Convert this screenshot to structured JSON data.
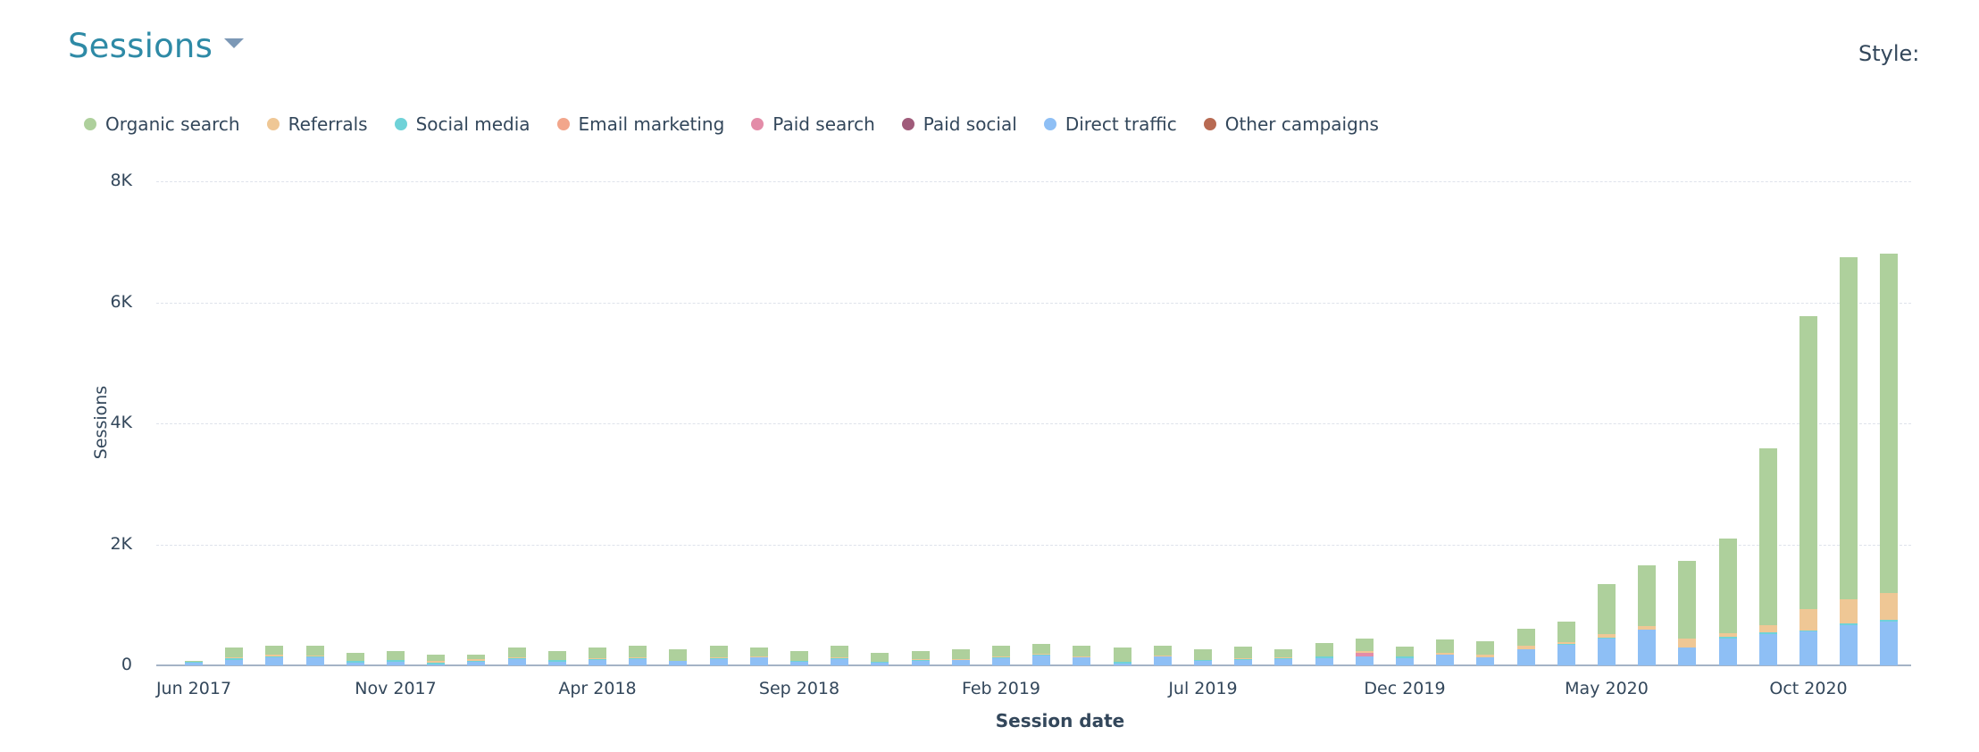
{
  "header": {
    "title": "Sessions",
    "title_color": "#2e8aa6",
    "dropdown_icon": "caret-down-icon",
    "style_label": "Style:"
  },
  "legend": [
    {
      "label": "Organic search",
      "color": "#aed09c"
    },
    {
      "label": "Referrals",
      "color": "#efc795"
    },
    {
      "label": "Social media",
      "color": "#6fd2d8"
    },
    {
      "label": "Email marketing",
      "color": "#f2a68b"
    },
    {
      "label": "Paid search",
      "color": "#e38ca8"
    },
    {
      "label": "Paid social",
      "color": "#a05b7a"
    },
    {
      "label": "Direct traffic",
      "color": "#8ebff5"
    },
    {
      "label": "Other campaigns",
      "color": "#b86a52"
    }
  ],
  "axes": {
    "y_title": "Sessions",
    "x_title": "Session date",
    "y_ticks": [
      "0",
      "2K",
      "4K",
      "6K",
      "8K"
    ],
    "x_ticks": [
      "Jun 2017",
      "Nov 2017",
      "Apr 2018",
      "Sep 2018",
      "Feb 2019",
      "Jul 2019",
      "Dec 2019",
      "May 2020",
      "Oct 2020"
    ]
  },
  "chart_data": {
    "type": "bar",
    "stacked": true,
    "title": "Sessions",
    "xlabel": "Session date",
    "ylabel": "Sessions",
    "ylim": [
      0,
      8000
    ],
    "y_ticks": [
      0,
      2000,
      4000,
      6000,
      8000
    ],
    "grid": true,
    "legend_position": "top",
    "categories": [
      "Jun 2017",
      "Jul 2017",
      "Aug 2017",
      "Sep 2017",
      "Oct 2017",
      "Nov 2017",
      "Dec 2017",
      "Jan 2018",
      "Feb 2018",
      "Mar 2018",
      "Apr 2018",
      "May 2018",
      "Jun 2018",
      "Jul 2018",
      "Aug 2018",
      "Sep 2018",
      "Oct 2018",
      "Nov 2018",
      "Dec 2018",
      "Jan 2019",
      "Feb 2019",
      "Mar 2019",
      "Apr 2019",
      "May 2019",
      "Jun 2019",
      "Jul 2019",
      "Aug 2019",
      "Sep 2019",
      "Oct 2019",
      "Nov 2019",
      "Dec 2019",
      "Jan 2020",
      "Feb 2020",
      "Mar 2020",
      "Apr 2020",
      "May 2020",
      "Jun 2020",
      "Jul 2020",
      "Aug 2020",
      "Sep 2020",
      "Oct 2020",
      "Nov 2020",
      "Dec 2020"
    ],
    "series": [
      {
        "name": "Organic search",
        "values": [
          20,
          150,
          150,
          170,
          130,
          150,
          100,
          80,
          170,
          150,
          180,
          200,
          190,
          200,
          150,
          160,
          200,
          150,
          140,
          160,
          180,
          170,
          180,
          240,
          170,
          180,
          200,
          140,
          220,
          210,
          160,
          220,
          220,
          290,
          340,
          820,
          1000,
          1280,
          1570,
          2920,
          4840,
          5650,
          5600
        ]
      },
      {
        "name": "Referrals",
        "values": [
          5,
          25,
          30,
          10,
          10,
          5,
          30,
          30,
          5,
          5,
          10,
          5,
          5,
          5,
          10,
          5,
          15,
          5,
          5,
          15,
          20,
          5,
          15,
          5,
          5,
          5,
          5,
          15,
          10,
          30,
          10,
          30,
          40,
          50,
          30,
          60,
          60,
          150,
          60,
          120,
          360,
          400,
          450
        ]
      },
      {
        "name": "Social media",
        "values": [
          10,
          20,
          20,
          20,
          30,
          20,
          40,
          10,
          20,
          20,
          20,
          20,
          5,
          20,
          5,
          10,
          10,
          5,
          20,
          5,
          5,
          20,
          5,
          20,
          10,
          5,
          20,
          5,
          20,
          5,
          20,
          5,
          5,
          5,
          5,
          10,
          5,
          5,
          20,
          20,
          20,
          30,
          30
        ]
      },
      {
        "name": "Email marketing",
        "values": [
          0,
          0,
          0,
          0,
          0,
          0,
          0,
          0,
          0,
          0,
          0,
          0,
          0,
          0,
          0,
          0,
          0,
          0,
          0,
          0,
          0,
          0,
          0,
          0,
          0,
          0,
          0,
          0,
          0,
          0,
          0,
          0,
          0,
          0,
          0,
          0,
          0,
          0,
          0,
          0,
          0,
          0,
          0
        ]
      },
      {
        "name": "Paid search",
        "values": [
          0,
          0,
          0,
          0,
          0,
          0,
          0,
          0,
          0,
          0,
          0,
          0,
          0,
          0,
          0,
          0,
          0,
          0,
          0,
          0,
          0,
          0,
          0,
          0,
          0,
          0,
          0,
          0,
          0,
          60,
          0,
          0,
          0,
          0,
          0,
          0,
          0,
          0,
          0,
          0,
          0,
          0,
          0
        ]
      },
      {
        "name": "Paid social",
        "values": [
          0,
          0,
          0,
          0,
          0,
          0,
          0,
          0,
          0,
          0,
          0,
          0,
          0,
          0,
          0,
          0,
          0,
          0,
          0,
          0,
          0,
          0,
          0,
          0,
          0,
          0,
          0,
          0,
          0,
          0,
          0,
          0,
          0,
          0,
          0,
          0,
          0,
          0,
          0,
          0,
          0,
          0,
          0
        ]
      },
      {
        "name": "Direct traffic",
        "values": [
          45,
          95,
          130,
          130,
          40,
          65,
          10,
          60,
          105,
          65,
          90,
          105,
          70,
          105,
          135,
          65,
          105,
          50,
          75,
          90,
          125,
          160,
          130,
          35,
          145,
          80,
          90,
          110,
          125,
          145,
          125,
          175,
          135,
          265,
          345,
          450,
          590,
          295,
          450,
          520,
          555,
          660,
          720
        ]
      },
      {
        "name": "Other campaigns",
        "values": [
          0,
          0,
          0,
          0,
          0,
          0,
          0,
          0,
          0,
          0,
          0,
          0,
          0,
          0,
          0,
          0,
          0,
          0,
          0,
          0,
          0,
          0,
          0,
          0,
          0,
          0,
          0,
          0,
          0,
          0,
          0,
          0,
          0,
          0,
          0,
          0,
          0,
          0,
          0,
          0,
          0,
          0,
          0
        ]
      }
    ]
  }
}
